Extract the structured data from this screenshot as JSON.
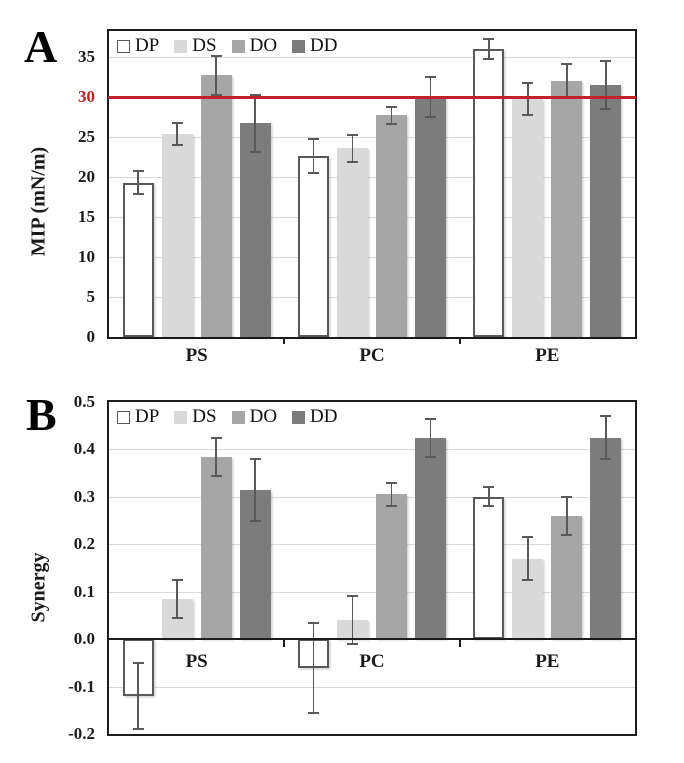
{
  "panels": [
    {
      "label": "A"
    },
    {
      "label": "B"
    }
  ],
  "chart_data": [
    {
      "type": "bar",
      "panel": "A",
      "title": "",
      "categories": [
        "PS",
        "PC",
        "PE"
      ],
      "series": [
        {
          "name": "DP",
          "values": [
            19.3,
            22.6,
            36.0
          ],
          "errors": [
            1.4,
            2.1,
            1.2
          ],
          "fill": "#ffffff",
          "stroke": "#595959"
        },
        {
          "name": "DS",
          "values": [
            25.4,
            23.6,
            29.7
          ],
          "errors": [
            1.4,
            1.7,
            2.0
          ],
          "fill": "#d9d9d9",
          "stroke": "#d9d9d9"
        },
        {
          "name": "DO",
          "values": [
            32.7,
            27.7,
            32.0
          ],
          "errors": [
            2.4,
            1.1,
            2.1
          ],
          "fill": "#a6a6a6",
          "stroke": "#a6a6a6"
        },
        {
          "name": "DD",
          "values": [
            26.7,
            30.0,
            31.5
          ],
          "errors": [
            3.6,
            2.5,
            3.0
          ],
          "fill": "#7c7c7c",
          "stroke": "#7c7c7c"
        }
      ],
      "xlabel": "",
      "ylabel": "MIP (mN/m)",
      "ylim": [
        0,
        38.25
      ],
      "yticks": [
        0,
        5,
        10,
        15,
        20,
        25,
        30,
        35
      ],
      "ytick_labels": [
        "0",
        "5",
        "10",
        "15",
        "20",
        "25",
        "30",
        "35"
      ],
      "ref_line": {
        "value": 30,
        "label": "30",
        "color": "#c32127"
      },
      "grid": true,
      "legend_position": "top-left",
      "error_color": "#595959"
    },
    {
      "type": "bar",
      "panel": "B",
      "title": "",
      "categories": [
        "PS",
        "PC",
        "PE"
      ],
      "series": [
        {
          "name": "DP",
          "values": [
            -0.12,
            -0.06,
            0.3
          ],
          "errors": [
            0.07,
            0.095,
            0.02
          ],
          "fill": "#ffffff",
          "stroke": "#595959"
        },
        {
          "name": "DS",
          "values": [
            0.085,
            0.04,
            0.17
          ],
          "errors": [
            0.04,
            0.05,
            0.045
          ],
          "fill": "#d9d9d9",
          "stroke": "#d9d9d9"
        },
        {
          "name": "DO",
          "values": [
            0.385,
            0.305,
            0.26
          ],
          "errors": [
            0.04,
            0.025,
            0.04
          ],
          "fill": "#a6a6a6",
          "stroke": "#a6a6a6"
        },
        {
          "name": "DD",
          "values": [
            0.315,
            0.425,
            0.425
          ],
          "errors": [
            0.065,
            0.04,
            0.045
          ],
          "fill": "#7c7c7c",
          "stroke": "#7c7c7c"
        }
      ],
      "xlabel": "",
      "ylabel": "Synergy",
      "ylim": [
        -0.2,
        0.5
      ],
      "yticks": [
        -0.2,
        -0.1,
        0,
        0.1,
        0.2,
        0.3,
        0.4,
        0.5
      ],
      "ytick_labels": [
        "-0.2",
        "-0.1",
        "0.0",
        "0.1",
        "0.2",
        "0.3",
        "0.4",
        "0.5"
      ],
      "grid": true,
      "legend_position": "top-left",
      "error_color": "#595959"
    }
  ]
}
